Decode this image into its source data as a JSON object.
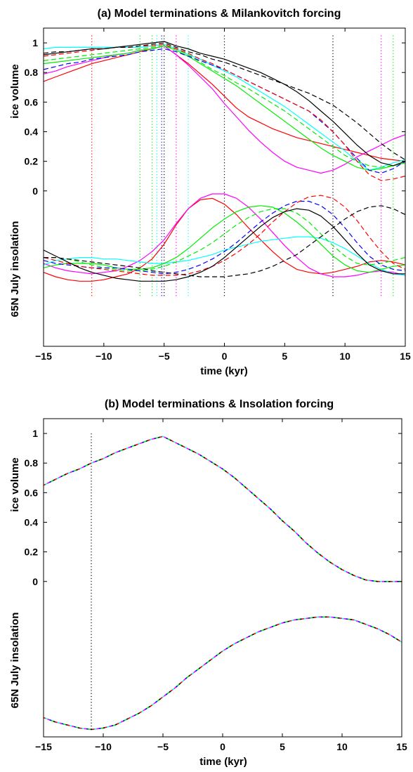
{
  "chart_data": [
    {
      "type": "line",
      "title": "(a) Model terminations & Milankovitch forcing",
      "xlabel": "time (kyr)",
      "ylabel_upper": "ice volume",
      "ylabel_lower": "65N July insolation",
      "xlim": [
        -15,
        15
      ],
      "xticks": [
        -15,
        -10,
        -5,
        0,
        5,
        10,
        15
      ],
      "ylim": [
        -1.05,
        1.1
      ],
      "yticks": [
        0,
        0.2,
        0.4,
        0.6,
        0.8,
        1
      ],
      "ytick_labels": [
        "0",
        "0.2",
        "0.4",
        "0.6",
        "0.8",
        "1"
      ],
      "grid": false,
      "x": [
        -15,
        -14,
        -13,
        -12,
        -11,
        -10,
        -9,
        -8,
        -7,
        -6,
        -5,
        -4,
        -3,
        -2,
        -1,
        0,
        1,
        2,
        3,
        4,
        5,
        6,
        7,
        8,
        9,
        10,
        11,
        12,
        13,
        14,
        15
      ],
      "series": [
        {
          "group": "ice",
          "color": "#ff0000",
          "dash": false,
          "values": [
            0.74,
            0.77,
            0.8,
            0.83,
            0.86,
            0.88,
            0.9,
            0.92,
            0.94,
            0.96,
            0.98,
            0.92,
            0.86,
            0.79,
            0.72,
            0.64,
            0.56,
            0.5,
            0.46,
            0.42,
            0.39,
            0.36,
            0.34,
            0.32,
            0.3,
            0.28,
            0.26,
            0.24,
            0.22,
            0.21,
            0.2
          ]
        },
        {
          "group": "ice",
          "color": "#ff00ff",
          "dash": false,
          "values": [
            0.79,
            0.81,
            0.84,
            0.86,
            0.88,
            0.9,
            0.92,
            0.93,
            0.95,
            0.96,
            0.98,
            0.92,
            0.85,
            0.77,
            0.69,
            0.59,
            0.5,
            0.41,
            0.33,
            0.26,
            0.2,
            0.16,
            0.14,
            0.12,
            0.14,
            0.18,
            0.23,
            0.27,
            0.31,
            0.35,
            0.38
          ]
        },
        {
          "group": "ice",
          "color": "#00ffff",
          "dash": false,
          "values": [
            0.96,
            0.97,
            0.97,
            0.97,
            0.97,
            0.97,
            0.97,
            0.97,
            0.97,
            0.98,
            0.99,
            0.96,
            0.92,
            0.89,
            0.85,
            0.81,
            0.77,
            0.72,
            0.67,
            0.62,
            0.57,
            0.51,
            0.45,
            0.39,
            0.33,
            0.27,
            0.2,
            0.14,
            0.16,
            0.19,
            0.21
          ]
        },
        {
          "group": "ice",
          "color": "#00ee00",
          "dash": false,
          "values": [
            0.86,
            0.87,
            0.88,
            0.89,
            0.9,
            0.91,
            0.92,
            0.93,
            0.95,
            0.96,
            0.98,
            0.95,
            0.91,
            0.86,
            0.81,
            0.76,
            0.71,
            0.65,
            0.59,
            0.53,
            0.47,
            0.41,
            0.35,
            0.29,
            0.24,
            0.2,
            0.16,
            0.14,
            0.15,
            0.17,
            0.19
          ]
        },
        {
          "group": "ice",
          "color": "#00ee00",
          "dash": true,
          "values": [
            0.88,
            0.89,
            0.9,
            0.91,
            0.92,
            0.93,
            0.94,
            0.95,
            0.96,
            0.97,
            0.98,
            0.96,
            0.92,
            0.87,
            0.82,
            0.78,
            0.73,
            0.69,
            0.64,
            0.59,
            0.54,
            0.48,
            0.42,
            0.36,
            0.3,
            0.24,
            0.2,
            0.17,
            0.16,
            0.17,
            0.19
          ]
        },
        {
          "group": "ice",
          "color": "#0000ff",
          "dash": true,
          "values": [
            0.82,
            0.84,
            0.86,
            0.87,
            0.89,
            0.9,
            0.91,
            0.92,
            0.94,
            0.95,
            0.96,
            0.94,
            0.91,
            0.88,
            0.85,
            0.82,
            0.78,
            0.74,
            0.7,
            0.66,
            0.62,
            0.58,
            0.54,
            0.47,
            0.4,
            0.31,
            0.22,
            0.14,
            0.12,
            0.15,
            0.2
          ]
        },
        {
          "group": "ice",
          "color": "#ff0000",
          "dash": true,
          "values": [
            0.91,
            0.92,
            0.93,
            0.94,
            0.95,
            0.96,
            0.97,
            0.97,
            0.98,
            0.98,
            0.99,
            0.96,
            0.93,
            0.89,
            0.86,
            0.82,
            0.78,
            0.74,
            0.7,
            0.66,
            0.62,
            0.58,
            0.54,
            0.48,
            0.4,
            0.31,
            0.2,
            0.11,
            0.07,
            0.08,
            0.1
          ]
        },
        {
          "group": "ice",
          "color": "#000000",
          "dash": true,
          "values": [
            0.93,
            0.94,
            0.94,
            0.95,
            0.96,
            0.96,
            0.97,
            0.97,
            0.98,
            0.99,
            1.0,
            0.97,
            0.94,
            0.92,
            0.89,
            0.87,
            0.84,
            0.81,
            0.78,
            0.75,
            0.72,
            0.69,
            0.66,
            0.62,
            0.58,
            0.52,
            0.46,
            0.39,
            0.32,
            0.26,
            0.21
          ]
        },
        {
          "group": "ice",
          "color": "#000000",
          "dash": false,
          "values": [
            0.92,
            0.93,
            0.94,
            0.95,
            0.96,
            0.96,
            0.97,
            0.98,
            0.99,
            1.0,
            1.01,
            0.98,
            0.96,
            0.93,
            0.91,
            0.89,
            0.86,
            0.83,
            0.8,
            0.76,
            0.72,
            0.67,
            0.61,
            0.54,
            0.47,
            0.39,
            0.31,
            0.24,
            0.19,
            0.17,
            0.2
          ]
        },
        {
          "group": "ins",
          "color": "#ff0000",
          "dash": false,
          "values": [
            -0.55,
            -0.58,
            -0.6,
            -0.61,
            -0.61,
            -0.6,
            -0.58,
            -0.56,
            -0.52,
            -0.46,
            -0.36,
            -0.23,
            -0.12,
            -0.06,
            -0.05,
            -0.09,
            -0.16,
            -0.25,
            -0.33,
            -0.41,
            -0.48,
            -0.53,
            -0.55,
            -0.56,
            -0.55,
            -0.53,
            -0.51,
            -0.48,
            -0.47,
            -0.48,
            -0.5
          ]
        },
        {
          "group": "ins",
          "color": "#ff00ff",
          "dash": false,
          "values": [
            -0.49,
            -0.52,
            -0.54,
            -0.55,
            -0.56,
            -0.55,
            -0.54,
            -0.51,
            -0.47,
            -0.41,
            -0.33,
            -0.22,
            -0.12,
            -0.05,
            -0.02,
            -0.02,
            -0.05,
            -0.11,
            -0.19,
            -0.28,
            -0.37,
            -0.45,
            -0.52,
            -0.56,
            -0.58,
            -0.58,
            -0.57,
            -0.55,
            -0.54,
            -0.55,
            -0.57
          ]
        },
        {
          "group": "ins",
          "color": "#00ffff",
          "dash": false,
          "values": [
            -0.5,
            -0.47,
            -0.46,
            -0.45,
            -0.45,
            -0.46,
            -0.46,
            -0.47,
            -0.48,
            -0.49,
            -0.49,
            -0.48,
            -0.47,
            -0.45,
            -0.43,
            -0.4,
            -0.38,
            -0.36,
            -0.34,
            -0.33,
            -0.32,
            -0.31,
            -0.31,
            -0.32,
            -0.35,
            -0.39,
            -0.44,
            -0.49,
            -0.53,
            -0.56,
            -0.57
          ]
        },
        {
          "group": "ins",
          "color": "#00ee00",
          "dash": false,
          "values": [
            -0.52,
            -0.5,
            -0.49,
            -0.49,
            -0.49,
            -0.5,
            -0.52,
            -0.53,
            -0.53,
            -0.52,
            -0.49,
            -0.45,
            -0.39,
            -0.32,
            -0.25,
            -0.19,
            -0.14,
            -0.11,
            -0.1,
            -0.11,
            -0.15,
            -0.21,
            -0.28,
            -0.36,
            -0.44,
            -0.5,
            -0.54,
            -0.55,
            -0.53,
            -0.51,
            -0.5
          ]
        },
        {
          "group": "ins",
          "color": "#00ee00",
          "dash": true,
          "values": [
            -0.45,
            -0.45,
            -0.46,
            -0.48,
            -0.5,
            -0.52,
            -0.53,
            -0.54,
            -0.54,
            -0.53,
            -0.51,
            -0.48,
            -0.44,
            -0.4,
            -0.35,
            -0.29,
            -0.23,
            -0.18,
            -0.14,
            -0.12,
            -0.12,
            -0.15,
            -0.21,
            -0.29,
            -0.37,
            -0.44,
            -0.49,
            -0.5,
            -0.49,
            -0.47,
            -0.45
          ]
        },
        {
          "group": "ins",
          "color": "#0000ff",
          "dash": true,
          "values": [
            -0.47,
            -0.49,
            -0.5,
            -0.51,
            -0.52,
            -0.52,
            -0.52,
            -0.53,
            -0.54,
            -0.55,
            -0.56,
            -0.55,
            -0.53,
            -0.5,
            -0.46,
            -0.41,
            -0.35,
            -0.28,
            -0.21,
            -0.15,
            -0.1,
            -0.07,
            -0.07,
            -0.1,
            -0.16,
            -0.25,
            -0.35,
            -0.44,
            -0.5,
            -0.53,
            -0.54
          ]
        },
        {
          "group": "ins",
          "color": "#ff0000",
          "dash": true,
          "values": [
            -0.45,
            -0.47,
            -0.49,
            -0.51,
            -0.52,
            -0.53,
            -0.54,
            -0.55,
            -0.56,
            -0.57,
            -0.57,
            -0.57,
            -0.56,
            -0.54,
            -0.51,
            -0.47,
            -0.42,
            -0.36,
            -0.29,
            -0.21,
            -0.14,
            -0.08,
            -0.04,
            -0.03,
            -0.05,
            -0.11,
            -0.2,
            -0.31,
            -0.41,
            -0.49,
            -0.53
          ]
        },
        {
          "group": "ins",
          "color": "#000000",
          "dash": true,
          "values": [
            -0.45,
            -0.45,
            -0.46,
            -0.47,
            -0.48,
            -0.49,
            -0.5,
            -0.51,
            -0.52,
            -0.54,
            -0.55,
            -0.56,
            -0.57,
            -0.58,
            -0.58,
            -0.58,
            -0.57,
            -0.56,
            -0.54,
            -0.51,
            -0.47,
            -0.43,
            -0.37,
            -0.31,
            -0.25,
            -0.19,
            -0.14,
            -0.11,
            -0.1,
            -0.12,
            -0.16
          ]
        },
        {
          "group": "ins",
          "color": "#000000",
          "dash": false,
          "values": [
            -0.4,
            -0.44,
            -0.48,
            -0.52,
            -0.55,
            -0.57,
            -0.59,
            -0.6,
            -0.61,
            -0.61,
            -0.61,
            -0.6,
            -0.58,
            -0.55,
            -0.51,
            -0.45,
            -0.38,
            -0.31,
            -0.24,
            -0.18,
            -0.14,
            -0.12,
            -0.13,
            -0.17,
            -0.24,
            -0.33,
            -0.42,
            -0.5,
            -0.54,
            -0.56,
            -0.56
          ]
        }
      ],
      "vlines": [
        {
          "x": -11,
          "color": "#ff0000"
        },
        {
          "x": -7,
          "color": "#00ee00"
        },
        {
          "x": -6,
          "color": "#00ee00"
        },
        {
          "x": -5.6,
          "color": "#00ffff"
        },
        {
          "x": -5.2,
          "color": "#0000ff"
        },
        {
          "x": -5,
          "color": "#000000"
        },
        {
          "x": -4,
          "color": "#ff00ff"
        },
        {
          "x": -3,
          "color": "#00ffff"
        },
        {
          "x": 0,
          "color": "#000000"
        },
        {
          "x": 9,
          "color": "#000000"
        },
        {
          "x": 13,
          "color": "#ff00ff"
        },
        {
          "x": 14,
          "color": "#00ee00"
        }
      ]
    },
    {
      "type": "line",
      "title": "(b) Model terminations & Insolation forcing",
      "xlabel": "time (kyr)",
      "ylabel_upper": "ice volume",
      "ylabel_lower": "65N July insolation",
      "xlim": [
        -15,
        15
      ],
      "xticks": [
        -15,
        -10,
        -5,
        0,
        5,
        10,
        15
      ],
      "ylim": [
        -1.05,
        1.1
      ],
      "yticks": [
        0,
        0.2,
        0.4,
        0.6,
        0.8,
        1
      ],
      "ytick_labels": [
        "0",
        "0.2",
        "0.4",
        "0.6",
        "0.8",
        "1"
      ],
      "grid": false,
      "note_series": "nine overlapping model curves (red, magenta, cyan, green, blue, black) that coincide",
      "x": [
        -15,
        -14,
        -13,
        -12,
        -11,
        -10,
        -9,
        -8,
        -7,
        -6,
        -5,
        -4,
        -3,
        -2,
        -1,
        0,
        1,
        2,
        3,
        4,
        5,
        6,
        7,
        8,
        9,
        10,
        11,
        12,
        13,
        14,
        15
      ],
      "ice_volume": [
        0.65,
        0.69,
        0.73,
        0.76,
        0.8,
        0.83,
        0.87,
        0.9,
        0.93,
        0.96,
        0.98,
        0.94,
        0.9,
        0.86,
        0.81,
        0.76,
        0.7,
        0.63,
        0.56,
        0.49,
        0.41,
        0.34,
        0.26,
        0.19,
        0.13,
        0.08,
        0.04,
        0.01,
        0.0,
        0.0,
        0.0
      ],
      "insolation": [
        -0.92,
        -0.95,
        -0.97,
        -0.99,
        -1.0,
        -0.99,
        -0.97,
        -0.93,
        -0.89,
        -0.84,
        -0.78,
        -0.72,
        -0.65,
        -0.59,
        -0.53,
        -0.47,
        -0.42,
        -0.38,
        -0.34,
        -0.31,
        -0.28,
        -0.26,
        -0.25,
        -0.24,
        -0.24,
        -0.25,
        -0.26,
        -0.29,
        -0.32,
        -0.36,
        -0.41
      ],
      "colors": [
        "#ff0000",
        "#00ffff",
        "#ff00ff",
        "#0000ff",
        "#00ee00",
        "#000000"
      ],
      "vlines": [
        {
          "x": -11,
          "color": "#000000"
        }
      ]
    }
  ]
}
